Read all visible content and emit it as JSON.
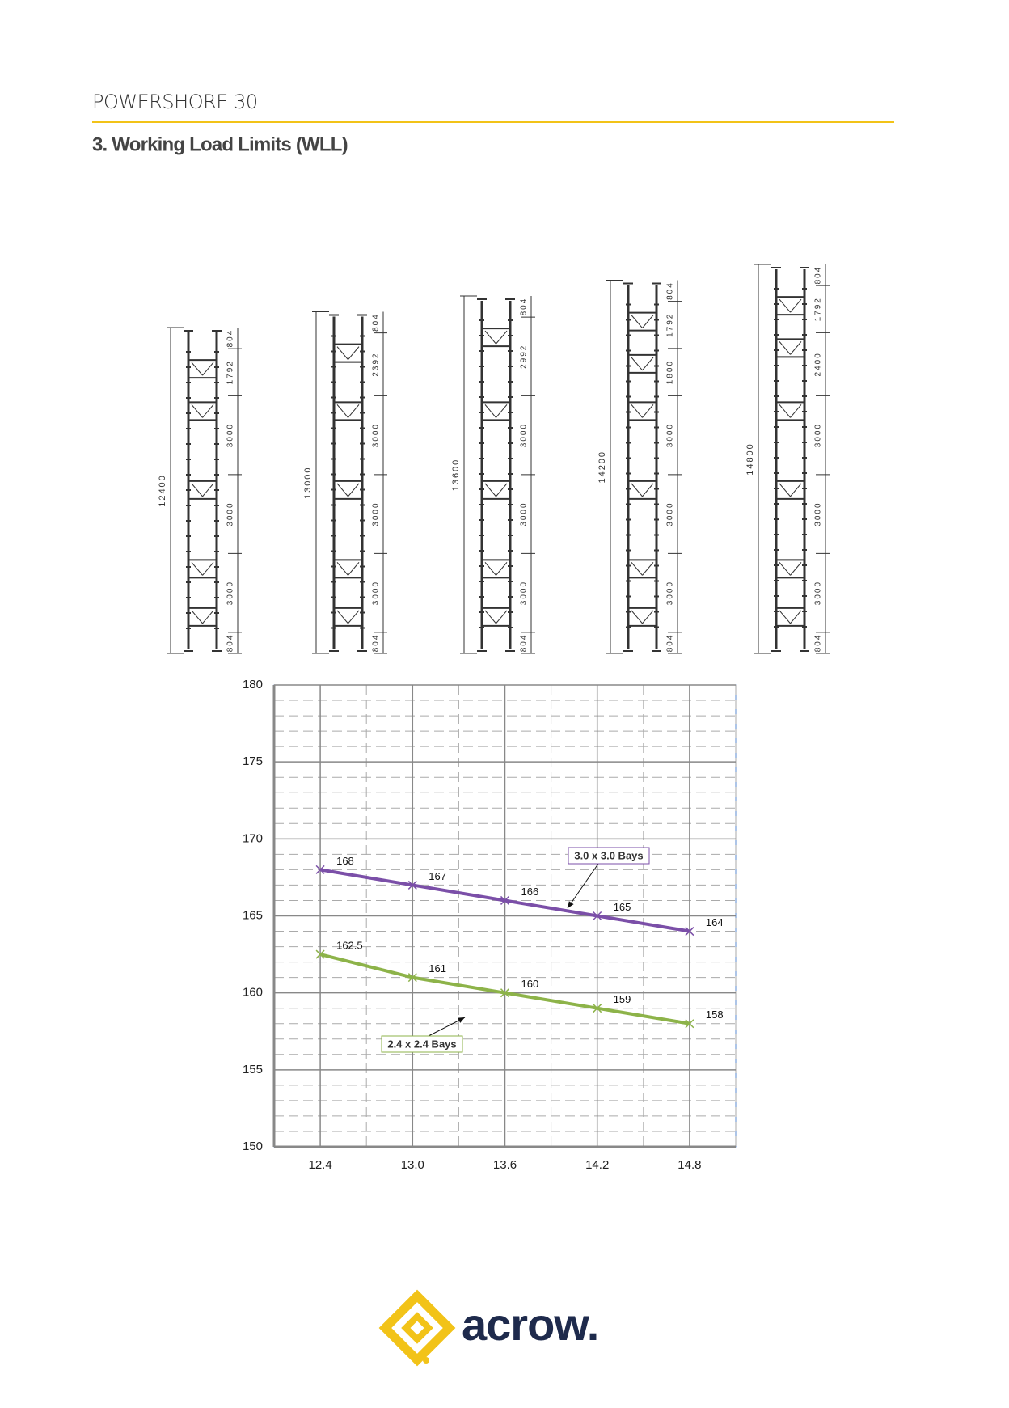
{
  "header": {
    "title": "POWERSHORE 30"
  },
  "section": {
    "title": "3. Working Load Limits (WLL)"
  },
  "towers": [
    {
      "total": 12400,
      "segments": [
        804,
        1792,
        3000,
        3000,
        3000,
        804
      ]
    },
    {
      "total": 13000,
      "segments": [
        804,
        2392,
        3000,
        3000,
        3000,
        804
      ]
    },
    {
      "total": 13600,
      "segments": [
        804,
        2992,
        3000,
        3000,
        3000,
        804
      ]
    },
    {
      "total": 14200,
      "segments": [
        804,
        1792,
        1800,
        3000,
        3000,
        3000,
        804
      ]
    },
    {
      "total": 14800,
      "segments": [
        804,
        1792,
        2400,
        3000,
        3000,
        3000,
        804
      ]
    }
  ],
  "chart_data": {
    "type": "line",
    "x": [
      12.4,
      13.0,
      13.6,
      14.2,
      14.8
    ],
    "series": [
      {
        "name": "3.0 x 3.0 Bays",
        "color": "#7b4fa8",
        "values": [
          168,
          167,
          166,
          165,
          164
        ]
      },
      {
        "name": "2.4 x 2.4 Bays",
        "color": "#8db349",
        "values": [
          162.5,
          161,
          160,
          159,
          158
        ]
      }
    ],
    "xlim": [
      12.1,
      15.1
    ],
    "xticks": [
      12.4,
      {
        "value": 13.0,
        "label": "13.0"
      },
      13.6,
      14.2,
      14.8
    ],
    "ylim": [
      150,
      180
    ],
    "yticks": [
      150,
      155,
      160,
      165,
      170,
      175,
      180
    ],
    "grid": true
  },
  "logo": {
    "text": "acrow."
  }
}
